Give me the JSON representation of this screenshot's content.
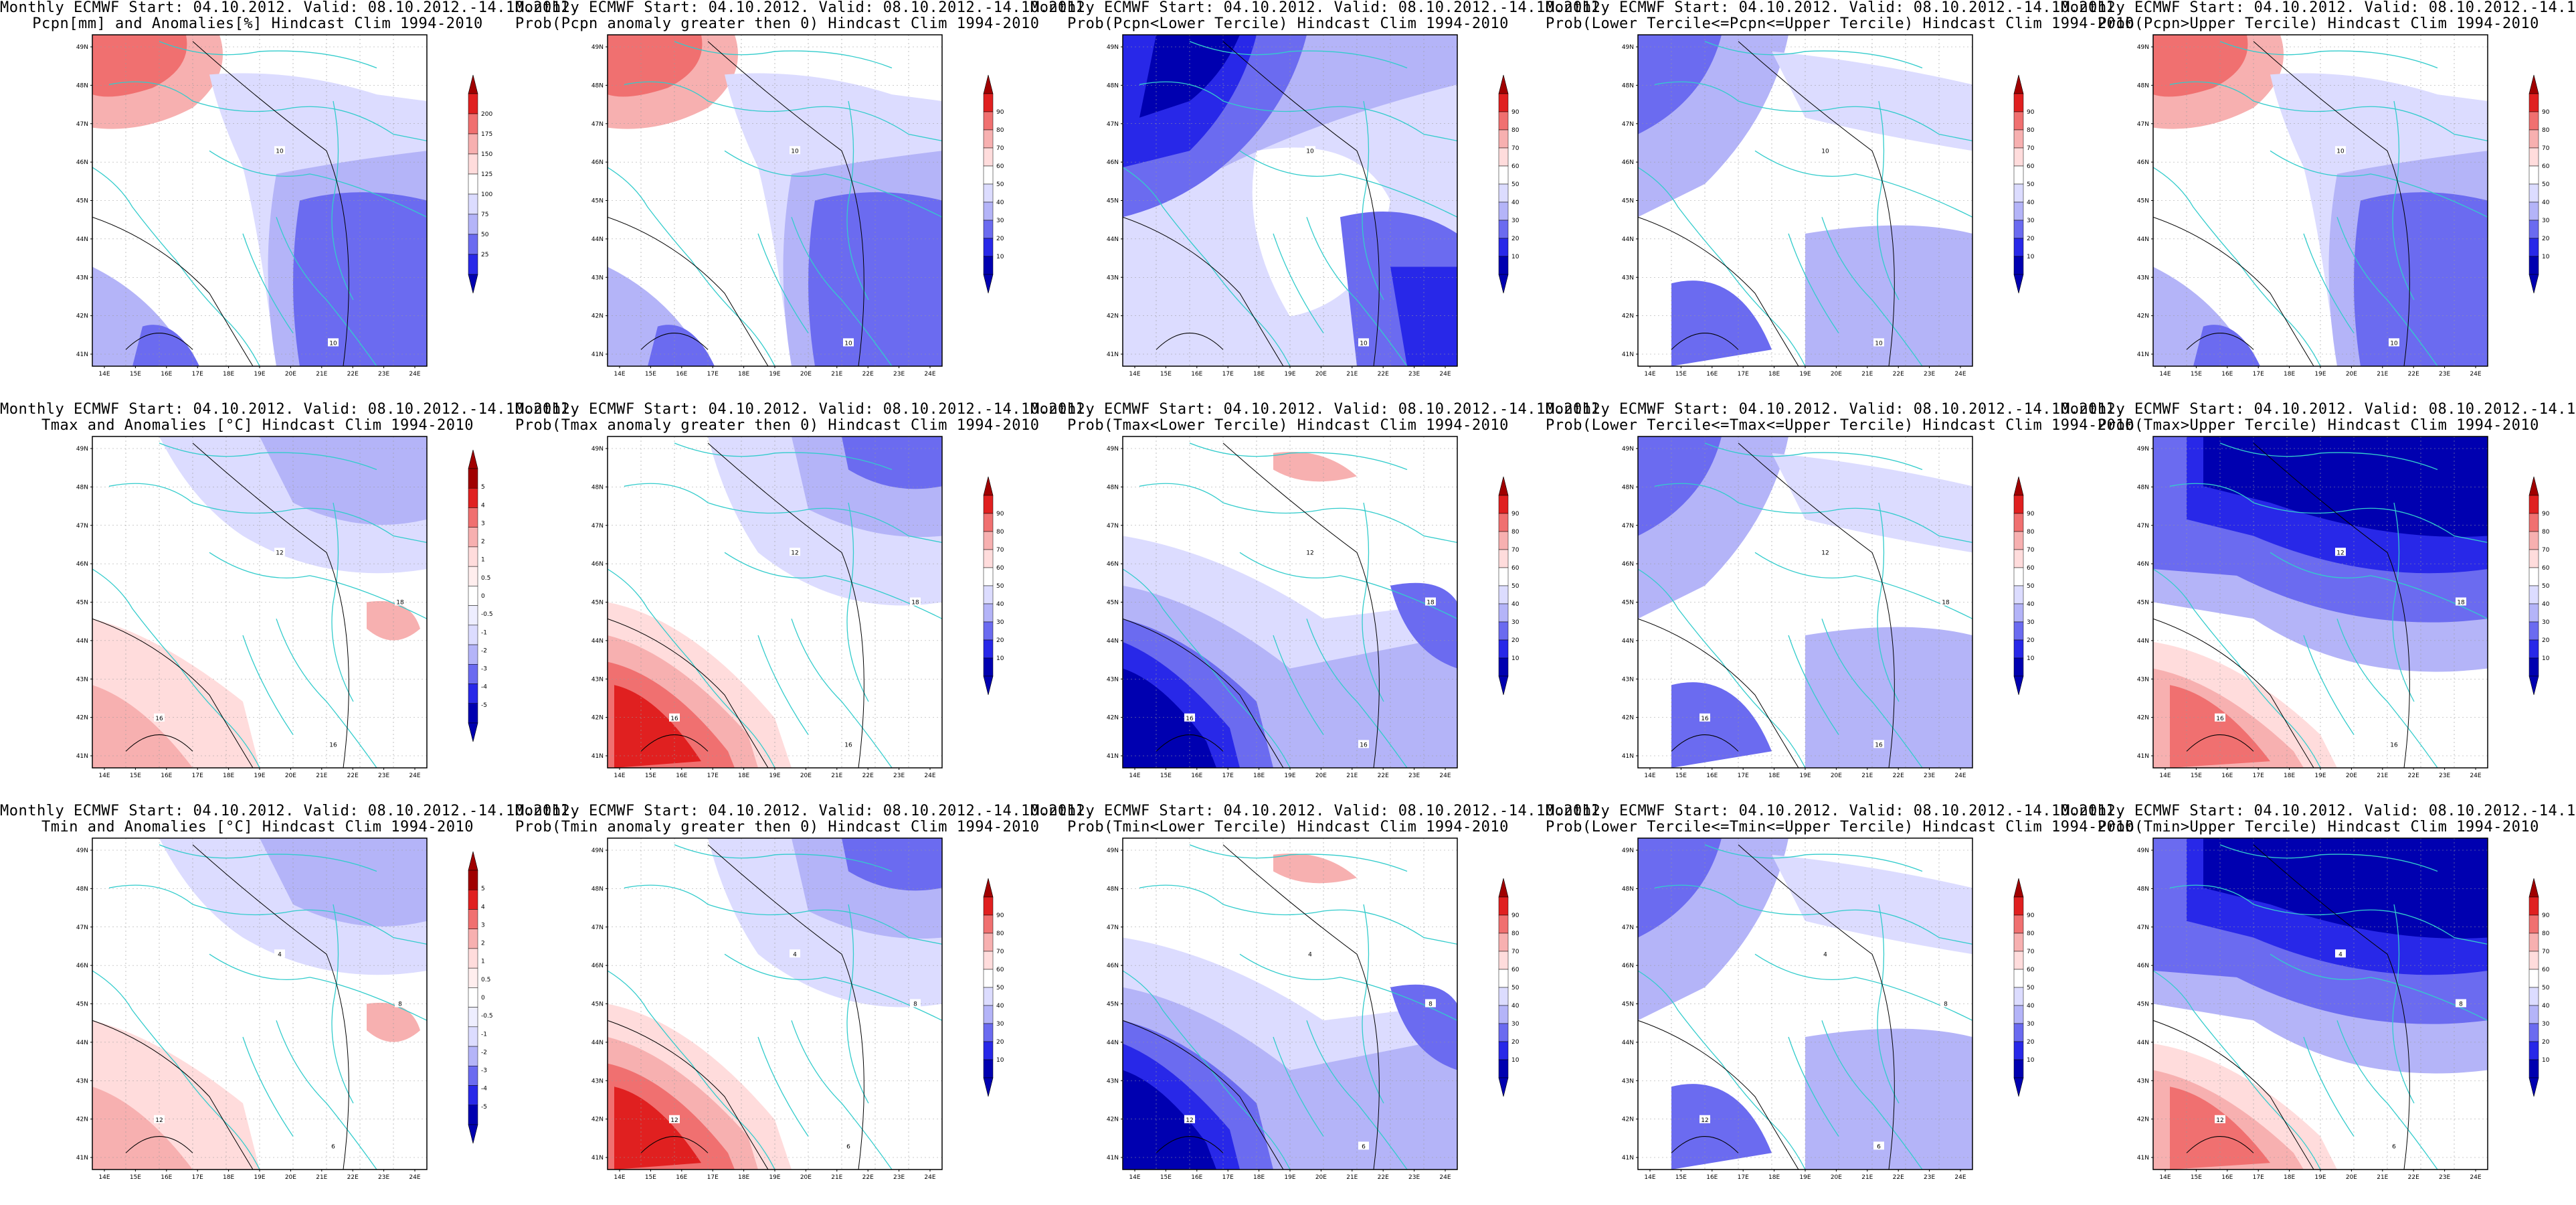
{
  "header": "Monthly ECMWF Start: 04.10.2012. Valid: 08.10.2012.-14.10.2012.",
  "latitude_labels": [
    "41N",
    "42N",
    "43N",
    "44N",
    "45N",
    "46N",
    "47N",
    "48N",
    "49N"
  ],
  "longitude_labels": [
    "14E",
    "15E",
    "16E",
    "17E",
    "18E",
    "19E",
    "20E",
    "21E",
    "22E",
    "23E",
    "24E"
  ],
  "colorbars": {
    "precip_anomaly": [
      "200",
      "175",
      "150",
      "125",
      "100",
      "75",
      "50",
      "25"
    ],
    "temp_anomaly": [
      "5",
      "4",
      "3",
      "2",
      "1",
      "0.5",
      "0",
      "-0.5",
      "-1",
      "-2",
      "-3",
      "-4",
      "-5"
    ],
    "probability": [
      "90",
      "80",
      "70",
      "60",
      "50",
      "40",
      "30",
      "20",
      "10"
    ]
  },
  "colors": {
    "dark_blue": "#0000b0",
    "mid_blue": "#2828e8",
    "blue": "#6b6bf0",
    "light_blue": "#b4b4f8",
    "pale_blue": "#dcdcff",
    "white": "#ffffff",
    "pale_red": "#ffdcdc",
    "light_red": "#f7b0b0",
    "red": "#f07070",
    "mid_red": "#e02020",
    "dark_red": "#a00000",
    "coast": "#33cccc",
    "contour": "#000000"
  },
  "panels": [
    {
      "line2": "Pcpn[mm] and Anomalies[%] Hindcast Clim 1994-2010",
      "scale": "precip_anomaly",
      "fill": "mixed_precip",
      "contour_labels": [
        "10",
        "10"
      ]
    },
    {
      "line2": "Prob(Pcpn anomaly greater then 0) Hindcast Clim 1994-2010",
      "scale": "probability",
      "fill": "mixed_precip",
      "contour_labels": [
        "10",
        "10"
      ]
    },
    {
      "line2": "Prob(Pcpn<Lower Tercile) Hindcast Clim 1994-2010",
      "scale": "probability",
      "fill": "blue_heavy",
      "contour_labels": [
        "10",
        "10"
      ]
    },
    {
      "line2": "Prob(Lower Tercile<=Pcpn<=Upper Tercile) Hindcast Clim 1994-2010",
      "scale": "probability",
      "fill": "blue_light",
      "contour_labels": [
        "10",
        "10"
      ]
    },
    {
      "line2": "Prob(Pcpn>Upper Tercile) Hindcast Clim 1994-2010",
      "scale": "probability",
      "fill": "mixed_precip",
      "contour_labels": [
        "10",
        "10"
      ]
    },
    {
      "line2": "Tmax and Anomalies [°C] Hindcast Clim 1994-2010",
      "scale": "temp_anomaly",
      "fill": "pale_mixed",
      "contour_labels": [
        "12",
        "16",
        "18",
        "16"
      ]
    },
    {
      "line2": "Prob(Tmax anomaly greater then 0) Hindcast Clim 1994-2010",
      "scale": "probability",
      "fill": "red_sw",
      "contour_labels": [
        "12",
        "16",
        "18",
        "16"
      ]
    },
    {
      "line2": "Prob(Tmax<Lower Tercile) Hindcast Clim 1994-2010",
      "scale": "probability",
      "fill": "blue_sw",
      "contour_labels": [
        "12",
        "16",
        "18",
        "16"
      ]
    },
    {
      "line2": "Prob(Lower Tercile<=Tmax<=Upper Tercile) Hindcast Clim 1994-2010",
      "scale": "probability",
      "fill": "blue_light",
      "contour_labels": [
        "12",
        "16",
        "18",
        "16"
      ]
    },
    {
      "line2": "Prob(Tmax>Upper Tercile) Hindcast Clim 1994-2010",
      "scale": "probability",
      "fill": "blue_north",
      "contour_labels": [
        "12",
        "16",
        "18",
        "16"
      ]
    },
    {
      "line2": "Tmin and Anomalies [°C] Hindcast Clim 1994-2010",
      "scale": "temp_anomaly",
      "fill": "pale_mixed",
      "contour_labels": [
        "4",
        "6",
        "8",
        "12"
      ]
    },
    {
      "line2": "Prob(Tmin anomaly greater then 0) Hindcast Clim 1994-2010",
      "scale": "probability",
      "fill": "red_sw",
      "contour_labels": [
        "4",
        "6",
        "8",
        "12"
      ]
    },
    {
      "line2": "Prob(Tmin<Lower Tercile) Hindcast Clim 1994-2010",
      "scale": "probability",
      "fill": "blue_sw",
      "contour_labels": [
        "4",
        "6",
        "8",
        "12"
      ]
    },
    {
      "line2": "Prob(Lower Tercile<=Tmin<=Upper Tercile) Hindcast Clim 1994-2010",
      "scale": "probability",
      "fill": "blue_light",
      "contour_labels": [
        "4",
        "6",
        "8",
        "12"
      ]
    },
    {
      "line2": "Prob(Tmin>Upper Tercile) Hindcast Clim 1994-2010",
      "scale": "probability",
      "fill": "blue_north",
      "contour_labels": [
        "4",
        "6",
        "8",
        "12"
      ]
    }
  ]
}
